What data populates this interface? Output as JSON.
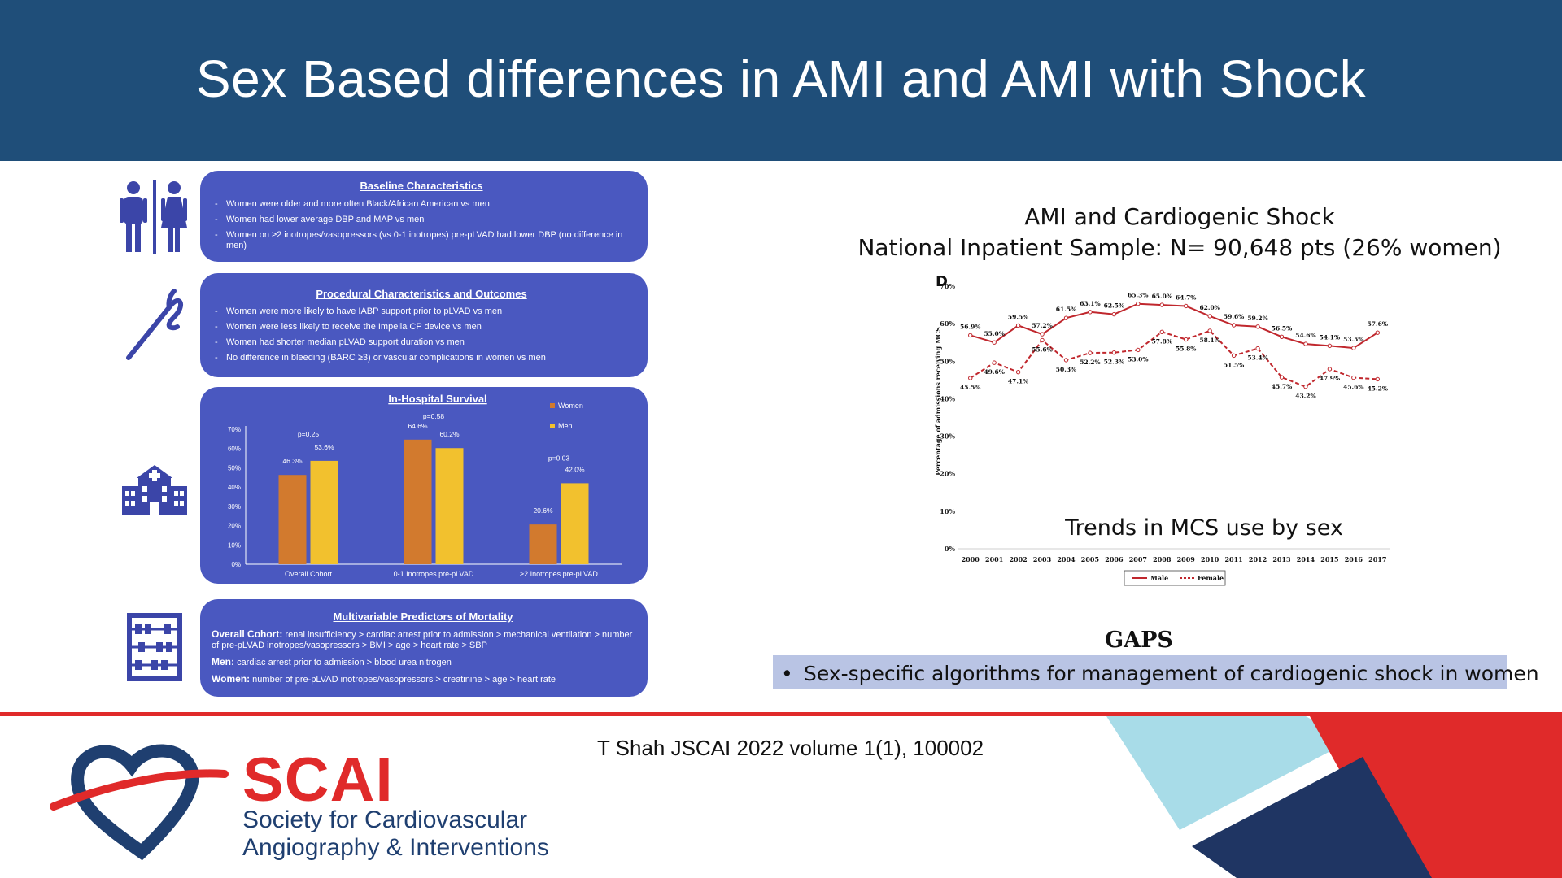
{
  "slide": {
    "title": "Sex Based differences in AMI and AMI with Shock",
    "citation": "T Shah JSCAI 2022 volume 1(1), 100002"
  },
  "panels": {
    "baseline": {
      "title": "Baseline Characteristics",
      "items": [
        "Women were older and more often Black/African American vs men",
        "Women had lower average DBP and MAP vs men",
        "Women on ≥2 inotropes/vasopressors (vs 0-1 inotropes) pre-pLVAD had lower DBP (no difference in men)"
      ]
    },
    "procedural": {
      "title": "Procedural Characteristics and Outcomes",
      "items": [
        "Women were more likely to have IABP support prior to pLVAD vs men",
        "Women were less likely to receive the Impella CP device vs men",
        "Women had shorter median pLVAD support duration vs men",
        "No difference in bleeding (BARC ≥3) or vascular complications in women vs men"
      ]
    },
    "mortality": {
      "title": "Multivariable Predictors of Mortality",
      "lines": [
        {
          "label": "Overall Cohort:",
          "text": "renal insufficiency > cardiac arrest prior to admission > mechanical ventilation > number of pre-pLVAD inotropes/vasopressors > BMI > age > heart rate > SBP"
        },
        {
          "label": "Men:",
          "text": "cardiac arrest prior to admission > blood urea nitrogen"
        },
        {
          "label": "Women:",
          "text": "number of pre-pLVAD inotropes/vasopressors > creatinine > age > heart rate"
        }
      ]
    }
  },
  "icons": {
    "people": "restroom-people-icon",
    "needle": "needle-icon",
    "hospital": "hospital-icon",
    "abacus": "abacus-icon"
  },
  "chart_data": [
    {
      "type": "bar",
      "title": "In-Hospital Survival",
      "categories": [
        "Overall Cohort",
        "0-1 Inotropes pre-pLVAD",
        "≥2 Inotropes pre-pLVAD"
      ],
      "series": [
        {
          "name": "Women",
          "values": [
            46.3,
            64.6,
            20.6
          ],
          "labels": [
            "46.3%",
            "64.6%",
            "20.6%"
          ],
          "color": "#d27a2e"
        },
        {
          "name": "Men",
          "values": [
            53.6,
            60.2,
            42.0
          ],
          "labels": [
            "53.6%",
            "60.2%",
            "42.0%"
          ],
          "color": "#f2c12e"
        }
      ],
      "annotations": [
        "p=0.25",
        "p=0.58",
        "p=0.03"
      ],
      "yticks": [
        "0%",
        "10%",
        "20%",
        "30%",
        "40%",
        "50%",
        "60%",
        "70%"
      ],
      "ylim": [
        0,
        70
      ],
      "legend": "top-right"
    },
    {
      "type": "line",
      "title": "AMI and Cardiogenic Shock",
      "subtitle": "National Inpatient Sample: N= 90,648 pts (26% women)",
      "panel_letter": "D",
      "caption": "Trends in MCS use by sex",
      "ylabel": "Percentage of admissions receiving MCS",
      "x": [
        "2000",
        "2001",
        "2002",
        "2003",
        "2004",
        "2005",
        "2006",
        "2007",
        "2008",
        "2009",
        "2010",
        "2011",
        "2012",
        "2013",
        "2014",
        "2015",
        "2016",
        "2017"
      ],
      "yticks": [
        "0%",
        "10%",
        "20%",
        "30%",
        "40%",
        "50%",
        "60%",
        "70%"
      ],
      "ylim": [
        0,
        70
      ],
      "series": [
        {
          "name": "Male",
          "values": [
            56.9,
            55.0,
            59.5,
            57.2,
            61.5,
            63.1,
            62.5,
            65.3,
            65.0,
            64.7,
            62.0,
            59.6,
            59.2,
            56.5,
            54.6,
            54.1,
            53.5,
            57.6
          ],
          "labels": [
            "56.9%",
            "55.0%",
            "59.5%",
            "57.2%",
            "61.5%",
            "63.1%",
            "62.5%",
            "65.3%",
            "65.0%",
            "64.7%",
            "62.0%",
            "59.6%",
            "59.2%",
            "56.5%",
            "54.6%",
            "54.1%",
            "53.5%",
            "57.6%"
          ],
          "color": "#c0272d",
          "dash": "solid"
        },
        {
          "name": "Female",
          "values": [
            45.5,
            49.6,
            47.1,
            55.6,
            50.3,
            52.2,
            52.3,
            53.0,
            57.8,
            55.8,
            58.1,
            51.5,
            53.4,
            45.7,
            43.2,
            47.9,
            45.6,
            45.2
          ],
          "labels": [
            "45.5%",
            "49.6%",
            "47.1%",
            "55.6%",
            "50.3%",
            "52.2%",
            "52.3%",
            "53.0%",
            "57.8%",
            "55.8%",
            "58.1%",
            "51.5%",
            "53.4%",
            "45.7%",
            "43.2%",
            "47.9%",
            "45.6%",
            "45.2%"
          ],
          "color": "#c0272d",
          "dash": "dashed"
        }
      ],
      "legend": "bottom-center"
    }
  ],
  "gaps": {
    "title": "GAPS",
    "items": [
      "Sex-specific algorithms for management of cardiogenic shock in women"
    ]
  },
  "logo": {
    "word": "SCAI",
    "line1": "Society for Cardiovascular",
    "line2": "Angiography & Interventions"
  },
  "colors": {
    "header": "#1f4e79",
    "panel": "#4a58c0",
    "icon": "#3b45a8",
    "accent_red": "#e02a2a",
    "gaps_box": "#b9c4e4",
    "light_blue": "#a8dce8",
    "navy": "#1f3563"
  }
}
